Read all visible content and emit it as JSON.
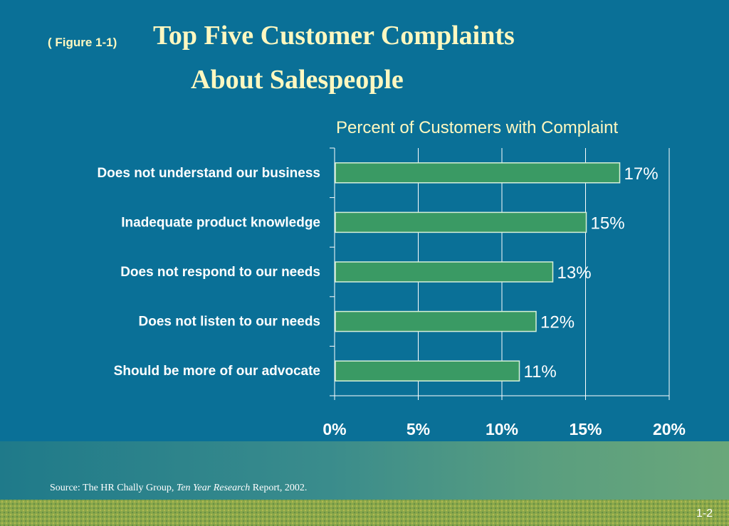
{
  "figure_label": "( Figure 1-1)",
  "title_line1": "Top Five Customer Complaints",
  "title_line2": "About Salespeople",
  "source": {
    "prefix": "Source:  The HR Chally Group, ",
    "italic": "Ten Year Research",
    "suffix": " Report, 2002."
  },
  "slide_number": "1-2",
  "colors": {
    "background": "#0a7097",
    "bar": "#3a9a64",
    "bar_border": "#d8f0d8",
    "title_text": "#fff8c0",
    "label_text": "#ffffff"
  },
  "chart_data": {
    "type": "bar",
    "orientation": "horizontal",
    "title": "Percent of Customers with Complaint",
    "categories": [
      "Does not understand our business",
      "Inadequate product knowledge",
      "Does not respond to our needs",
      "Does not listen to our needs",
      "Should be more of our advocate"
    ],
    "values": [
      17,
      15,
      13,
      12,
      11
    ],
    "data_labels": [
      "17%",
      "15%",
      "13%",
      "12%",
      "11%"
    ],
    "x_ticks": [
      0,
      5,
      10,
      15,
      20
    ],
    "x_tick_labels": [
      "0%",
      "5%",
      "10%",
      "15%",
      "20%"
    ],
    "xlim": [
      0,
      20
    ],
    "grid": "vertical",
    "legend": "none"
  }
}
